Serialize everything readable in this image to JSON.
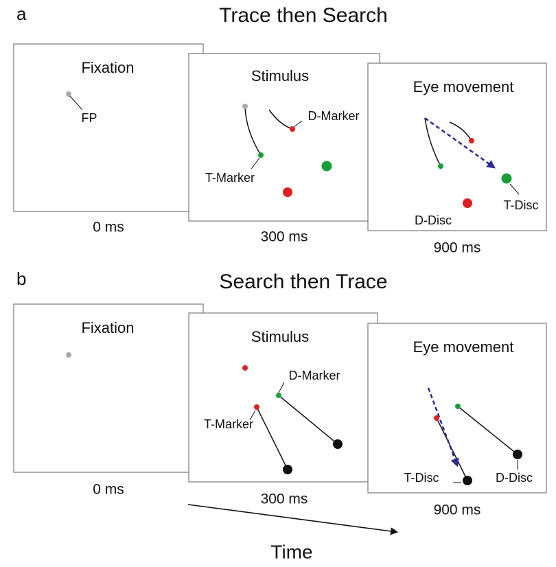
{
  "panels": [
    {
      "letter": "a",
      "title": "Trace then Search",
      "frames": [
        {
          "title": "Fixation",
          "time": "0 ms",
          "labels": [
            "FP"
          ]
        },
        {
          "title": "Stimulus",
          "time": "300 ms",
          "labels": [
            "D-Marker",
            "T-Marker"
          ]
        },
        {
          "title": "Eye movement",
          "time": "900 ms",
          "labels": [
            "T-Disc",
            "D-Disc"
          ]
        }
      ]
    },
    {
      "letter": "b",
      "title": "Search then Trace",
      "frames": [
        {
          "title": "Fixation",
          "time": "0 ms",
          "labels": []
        },
        {
          "title": "Stimulus",
          "time": "300 ms",
          "labels": [
            "D-Marker",
            "T-Marker"
          ]
        },
        {
          "title": "Eye movement",
          "time": "900 ms",
          "labels": [
            "T-Disc",
            "D-Disc"
          ]
        }
      ]
    }
  ],
  "axis": {
    "label": "Time"
  }
}
